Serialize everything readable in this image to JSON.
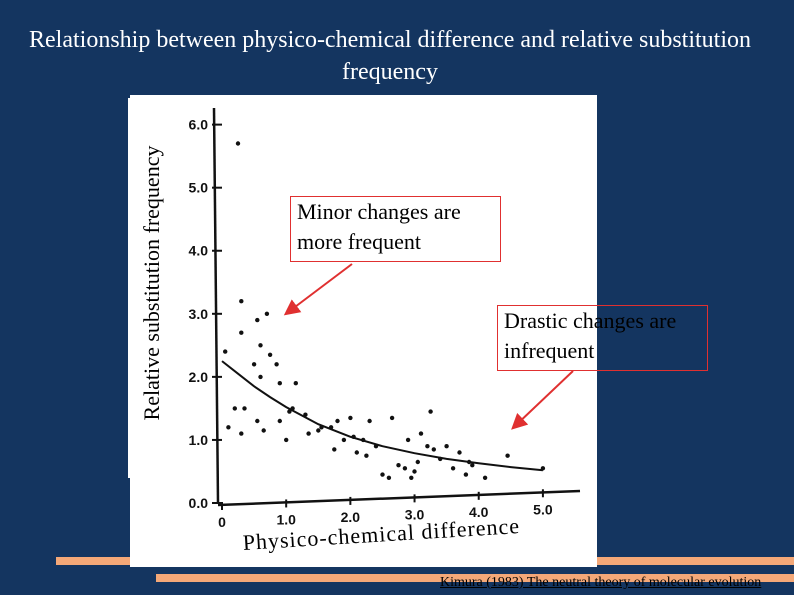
{
  "slide": {
    "title": "Relationship between physico-chemical difference and relative substitution frequency",
    "citation": "Kimura (1983) The neutral theory of molecular evolution"
  },
  "callouts": {
    "minor": "Minor changes are more frequent",
    "drastic": "Drastic changes are infrequent"
  },
  "colors": {
    "background": "#143560",
    "accent": "#f4a878",
    "arrow": "#e03030"
  },
  "chart_data": {
    "type": "scatter",
    "title": "",
    "xlabel": "Physico-chemical difference",
    "ylabel": "Relative substitution frequency",
    "xlim": [
      0,
      5.5
    ],
    "ylim": [
      0,
      6.2
    ],
    "xticks": [
      0,
      1.0,
      2.0,
      3.0,
      4.0,
      5.0
    ],
    "xtick_labels": [
      "0",
      "1.0",
      "2.0",
      "3.0",
      "4.0",
      "5.0"
    ],
    "yticks": [
      0.0,
      1.0,
      2.0,
      3.0,
      4.0,
      5.0,
      6.0
    ],
    "ytick_labels": [
      "0.0",
      "1.0",
      "2.0",
      "3.0",
      "4.0",
      "5.0",
      "6.0"
    ],
    "grid": false,
    "points": [
      [
        0.25,
        5.7
      ],
      [
        0.3,
        3.2
      ],
      [
        0.3,
        2.7
      ],
      [
        0.05,
        2.4
      ],
      [
        0.1,
        1.2
      ],
      [
        0.2,
        1.5
      ],
      [
        0.3,
        1.1
      ],
      [
        0.35,
        1.5
      ],
      [
        0.55,
        2.9
      ],
      [
        0.6,
        2.5
      ],
      [
        0.5,
        2.2
      ],
      [
        0.6,
        2.0
      ],
      [
        0.55,
        1.3
      ],
      [
        0.65,
        1.15
      ],
      [
        0.75,
        2.35
      ],
      [
        0.85,
        2.2
      ],
      [
        0.9,
        1.9
      ],
      [
        0.9,
        1.3
      ],
      [
        1.0,
        1.0
      ],
      [
        1.05,
        1.45
      ],
      [
        1.1,
        1.5
      ],
      [
        1.15,
        1.9
      ],
      [
        1.3,
        1.4
      ],
      [
        1.35,
        1.1
      ],
      [
        1.5,
        1.15
      ],
      [
        1.55,
        1.2
      ],
      [
        1.7,
        1.2
      ],
      [
        1.75,
        0.85
      ],
      [
        1.8,
        1.3
      ],
      [
        1.9,
        1.0
      ],
      [
        2.0,
        1.35
      ],
      [
        2.05,
        1.05
      ],
      [
        2.1,
        0.8
      ],
      [
        2.2,
        1.0
      ],
      [
        2.25,
        0.75
      ],
      [
        2.3,
        1.3
      ],
      [
        2.4,
        0.9
      ],
      [
        2.5,
        0.45
      ],
      [
        2.6,
        0.4
      ],
      [
        2.65,
        1.35
      ],
      [
        2.75,
        0.6
      ],
      [
        2.85,
        0.55
      ],
      [
        2.9,
        1.0
      ],
      [
        2.95,
        0.4
      ],
      [
        3.0,
        0.5
      ],
      [
        3.05,
        0.65
      ],
      [
        3.1,
        1.1
      ],
      [
        3.2,
        0.9
      ],
      [
        3.25,
        1.45
      ],
      [
        3.3,
        0.85
      ],
      [
        3.4,
        0.7
      ],
      [
        3.5,
        0.9
      ],
      [
        3.6,
        0.55
      ],
      [
        3.7,
        0.8
      ],
      [
        3.8,
        0.45
      ],
      [
        3.85,
        0.65
      ],
      [
        3.9,
        0.6
      ],
      [
        4.1,
        0.4
      ],
      [
        4.45,
        0.75
      ],
      [
        5.0,
        0.55
      ],
      [
        0.7,
        3.0
      ]
    ],
    "series": [
      {
        "name": "fitted curve",
        "x": [
          0,
          0.25,
          0.5,
          0.75,
          1.0,
          1.5,
          2.0,
          2.5,
          3.0,
          3.5,
          4.0,
          4.5,
          5.0
        ],
        "values": [
          2.25,
          2.05,
          1.85,
          1.68,
          1.52,
          1.25,
          1.05,
          0.9,
          0.79,
          0.7,
          0.63,
          0.57,
          0.52
        ]
      }
    ]
  }
}
